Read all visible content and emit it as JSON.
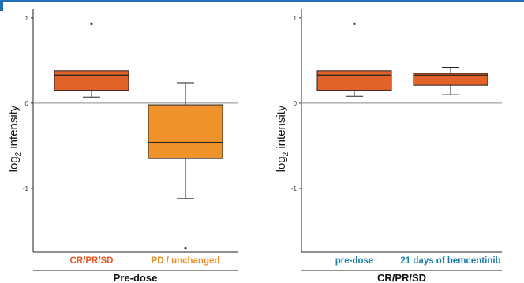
{
  "colors": {
    "accent_bar": "#1f6fb2",
    "box_dark_orange": "#e2622a",
    "box_light_orange": "#f0922b",
    "cat_dark_orange": "#e35a24",
    "cat_light_orange": "#f08c1c",
    "cat_teal": "#1a7ea8"
  },
  "chart_data": [
    {
      "type": "boxplot",
      "ylabel_main": "log",
      "ylabel_sub": "2",
      "ylabel_rest": " intensity",
      "ylim": [
        -1.75,
        1.1
      ],
      "yticks": [
        1,
        0,
        -1
      ],
      "ytick_labels": [
        "1",
        "0",
        "-1"
      ],
      "reference_line": 0,
      "group_label": "Pre-dose",
      "boxes": [
        {
          "category": "CR/PR/SD",
          "whisker_low": 0.07,
          "q1": 0.15,
          "median": 0.33,
          "q3": 0.38,
          "whisker_high": 0.38,
          "outliers": [
            0.93
          ],
          "color": "#e2622a",
          "label_color": "#e35a24"
        },
        {
          "category": "PD / unchanged",
          "whisker_low": -1.12,
          "q1": -0.65,
          "median": -0.46,
          "q3": -0.02,
          "whisker_high": 0.24,
          "outliers": [
            -1.7
          ],
          "color": "#f0922b",
          "label_color": "#f08c1c"
        }
      ]
    },
    {
      "type": "boxplot",
      "ylabel_main": "log",
      "ylabel_sub": "2",
      "ylabel_rest": " intensity",
      "ylim": [
        -1.75,
        1.1
      ],
      "yticks": [
        1,
        0,
        -1
      ],
      "ytick_labels": [
        "1",
        "0",
        "-1"
      ],
      "reference_line": 0,
      "group_label": "CR/PR/SD",
      "boxes": [
        {
          "category": "pre-dose",
          "whisker_low": 0.08,
          "q1": 0.15,
          "median": 0.33,
          "q3": 0.38,
          "whisker_high": 0.38,
          "outliers": [
            0.93
          ],
          "color": "#e2622a",
          "label_color": "#1a7ea8"
        },
        {
          "category": "21 days of bemcentinib",
          "whisker_low": 0.1,
          "q1": 0.21,
          "median": 0.33,
          "q3": 0.35,
          "whisker_high": 0.42,
          "outliers": [],
          "color": "#e2622a",
          "label_color": "#1a7ea8"
        }
      ]
    }
  ]
}
